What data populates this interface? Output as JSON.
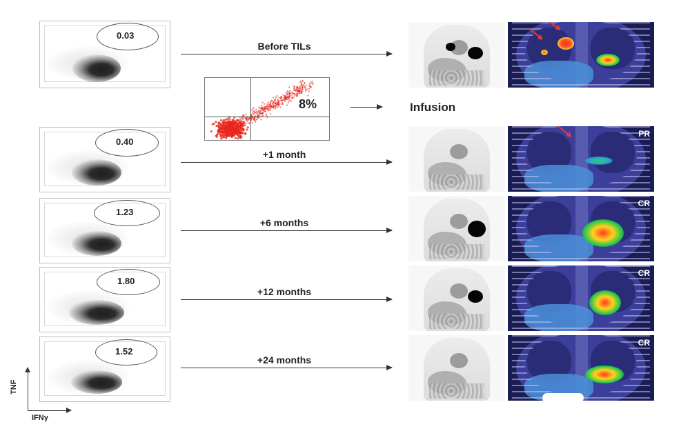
{
  "rows": [
    {
      "gate_value": "0.03",
      "timepoint": "Before TILs",
      "response": ""
    },
    {
      "gate_value": "0.40",
      "timepoint": "+1 month",
      "response": "PR"
    },
    {
      "gate_value": "1.23",
      "timepoint": "+6 months",
      "response": "CR"
    },
    {
      "gate_value": "1.80",
      "timepoint": "+12 months",
      "response": "CR"
    },
    {
      "gate_value": "1.52",
      "timepoint": "+24 months",
      "response": "CR"
    }
  ],
  "infusion": {
    "label": "Infusion",
    "quadrant_value": "8%"
  },
  "axes": {
    "y_label": "TNF",
    "x_label": "IFNγ"
  },
  "colors": {
    "infusion_dots": "#e8281e",
    "ct_background": "#1a1c54",
    "arrow": "#333333"
  }
}
